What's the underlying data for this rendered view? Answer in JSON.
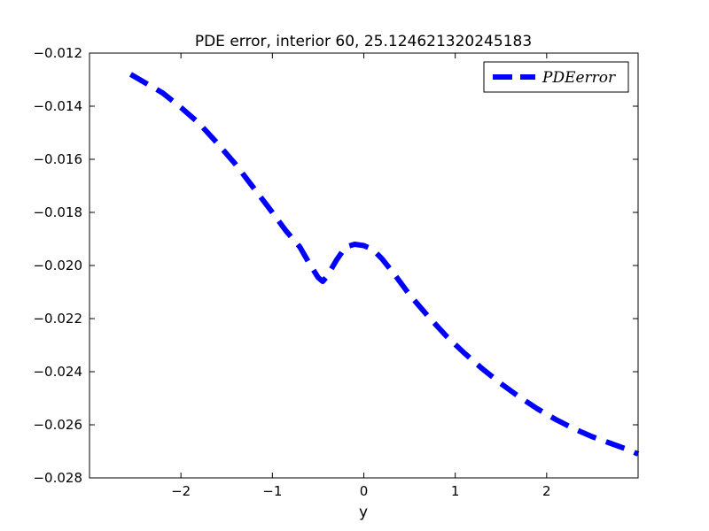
{
  "chart_data": {
    "type": "line",
    "title": "PDE error, interior 60, 25.124621320245183",
    "xlabel": "y",
    "ylabel": "",
    "xlim": [
      -3.0,
      3.0
    ],
    "ylim": [
      -0.028,
      -0.012
    ],
    "xticks": [
      -2,
      -1,
      0,
      1,
      2
    ],
    "xtick_labels": [
      "−2",
      "−1",
      "0",
      "1",
      "2"
    ],
    "yticks": [
      -0.028,
      -0.026,
      -0.024,
      -0.022,
      -0.02,
      -0.018,
      -0.016,
      -0.014,
      -0.012
    ],
    "ytick_labels": [
      "−0.028",
      "−0.026",
      "−0.024",
      "−0.022",
      "−0.020",
      "−0.018",
      "−0.016",
      "−0.014",
      "−0.012"
    ],
    "grid": false,
    "legend_position": "top-right",
    "series": [
      {
        "name": "PDEerror",
        "color": "#0000ff",
        "style": "dashed",
        "x": [
          -2.55,
          -2.4,
          -2.2,
          -2.0,
          -1.8,
          -1.6,
          -1.4,
          -1.2,
          -1.0,
          -0.85,
          -0.7,
          -0.6,
          -0.5,
          -0.45,
          -0.4,
          -0.3,
          -0.2,
          -0.1,
          0.0,
          0.1,
          0.2,
          0.35,
          0.5,
          0.7,
          0.9,
          1.1,
          1.3,
          1.5,
          1.7,
          1.9,
          2.1,
          2.3,
          2.5,
          2.7,
          2.9,
          3.0
        ],
        "y": [
          -0.0128,
          -0.0131,
          -0.0135,
          -0.01405,
          -0.01465,
          -0.0154,
          -0.0162,
          -0.0171,
          -0.018,
          -0.0187,
          -0.0193,
          -0.0199,
          -0.02045,
          -0.0206,
          -0.0204,
          -0.0198,
          -0.0193,
          -0.0192,
          -0.01925,
          -0.0194,
          -0.01975,
          -0.0204,
          -0.0211,
          -0.0219,
          -0.02265,
          -0.0233,
          -0.0239,
          -0.02445,
          -0.02495,
          -0.0254,
          -0.0258,
          -0.02615,
          -0.02645,
          -0.0267,
          -0.02695,
          -0.0271
        ]
      }
    ]
  }
}
